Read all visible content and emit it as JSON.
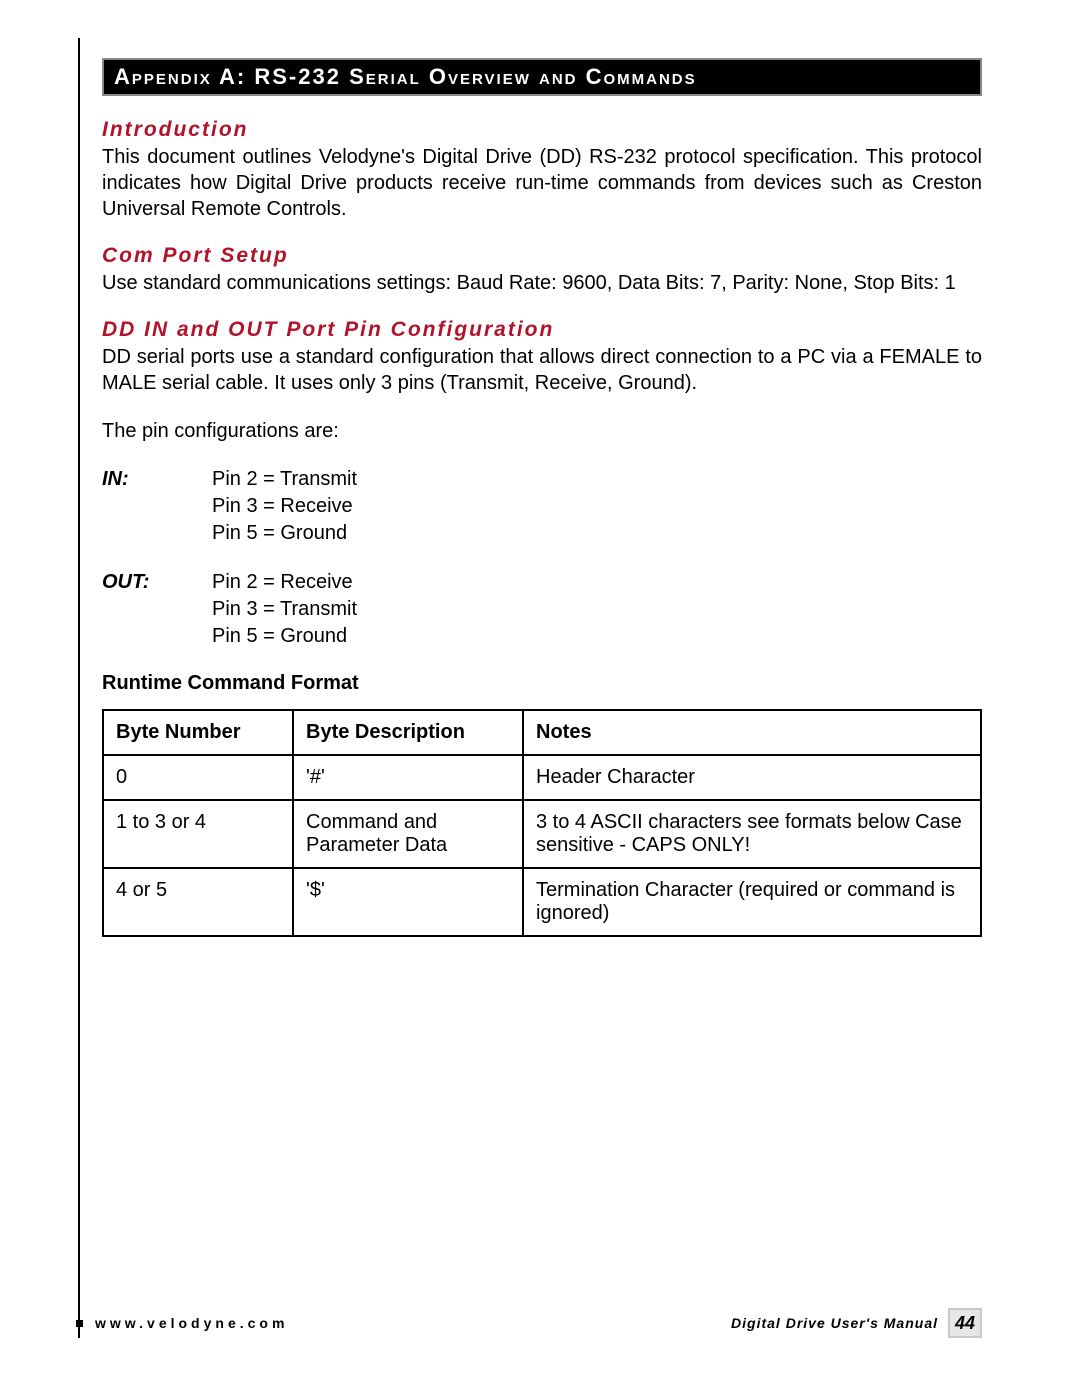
{
  "colors": {
    "heading": "#b1132b",
    "header_bg": "#000000",
    "header_text": "#ffffff",
    "header_border": "#888888",
    "text": "#000000",
    "page_bg": "#ffffff",
    "pagenum_bg": "#e6e6e6",
    "pagenum_border": "#c9c9c9"
  },
  "header": {
    "title": "Appendix A:  RS-232 Serial Overview and Commands"
  },
  "sections": {
    "intro": {
      "heading": "Introduction",
      "body": "This document outlines Velodyne's Digital Drive (DD) RS-232 protocol specification. This protocol indicates how Digital Drive products receive run-time commands from devices such as Creston Universal Remote Controls."
    },
    "comport": {
      "heading": "Com Port Setup",
      "body": "Use standard communications settings: Baud Rate: 9600, Data Bits: 7, Parity: None,  Stop Bits: 1"
    },
    "pinconfig": {
      "heading": "DD IN and OUT Port Pin Configuration",
      "body1": "DD serial ports use a standard configuration that allows direct connection to a PC via a FEMALE to MALE serial cable.  It uses only 3 pins (Transmit, Receive, Ground).",
      "body2": "The pin configurations are:",
      "in": {
        "label": "IN:",
        "pin2": "Pin 2 = Transmit",
        "pin3": "Pin 3 = Receive",
        "pin5": "Pin 5 = Ground"
      },
      "out": {
        "label": "OUT:",
        "pin2": "Pin 2 = Receive",
        "pin3": "Pin 3 = Transmit",
        "pin5": "Pin 5 = Ground"
      }
    },
    "runtime": {
      "heading": "Runtime Command Format",
      "table": {
        "columns": [
          "Byte Number",
          "Byte Description",
          "Notes"
        ],
        "rows": [
          [
            "0",
            "'#'",
            "Header Character"
          ],
          [
            "1 to 3 or 4",
            "Command and Parameter Data",
            "3 to 4 ASCII characters see formats below Case sensitive - CAPS ONLY!"
          ],
          [
            "4 or 5",
            "'$'",
            "Termination Character (required or command is ignored)"
          ]
        ]
      }
    }
  },
  "footer": {
    "url": "www.velodyne.com",
    "manual": "Digital Drive User's Manual",
    "page": "44"
  }
}
